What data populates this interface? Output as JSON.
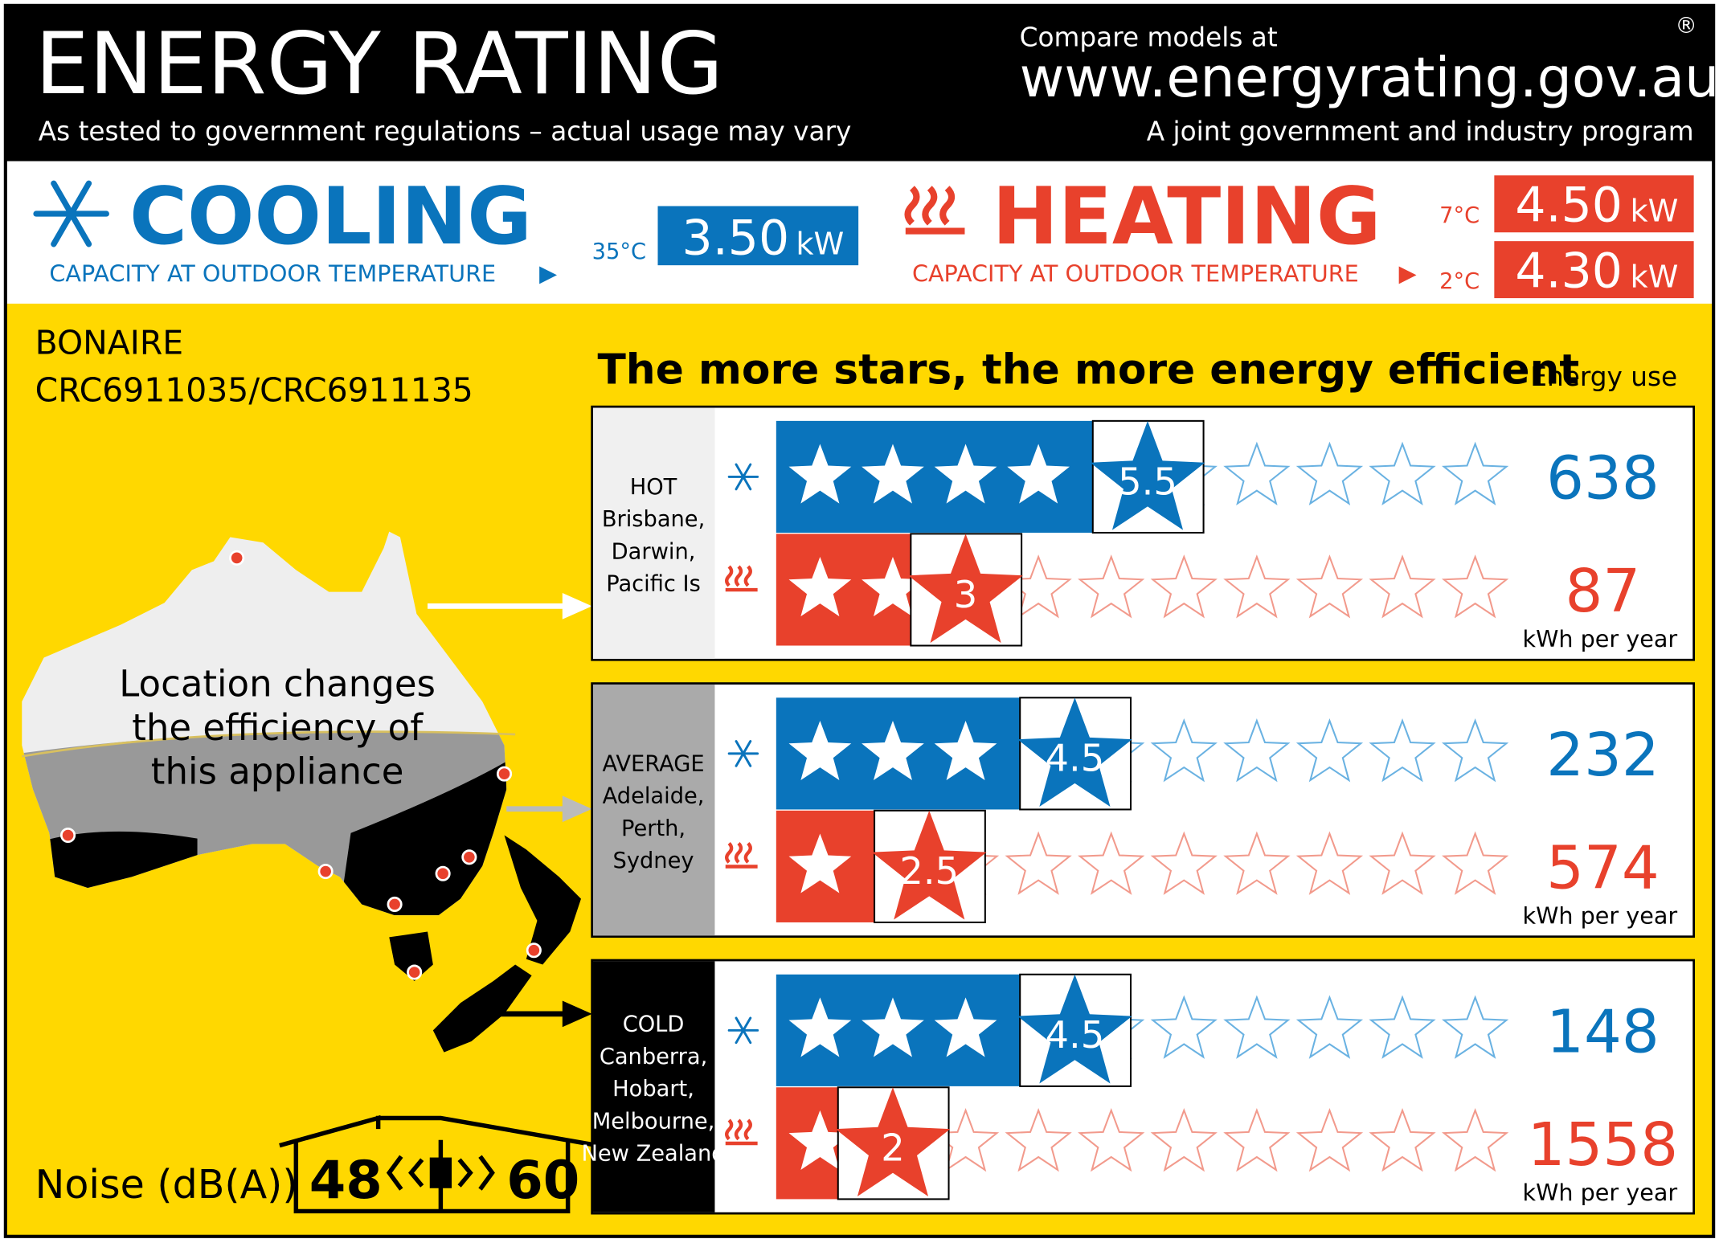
{
  "header": {
    "title": "ENERGY RATING",
    "subtitle": "As tested to government regulations – actual usage may vary",
    "compare": "Compare models at",
    "url": "www.energyrating.gov.au",
    "registered": "®",
    "program": "A joint government and industry program"
  },
  "cooling": {
    "label": "COOLING",
    "caption": "CAPACITY AT OUTDOOR TEMPERATURE",
    "ratings": [
      {
        "temperature": "35°C",
        "capacity": "3.50",
        "unit": "kW"
      }
    ]
  },
  "heating": {
    "label": "HEATING",
    "caption": "CAPACITY AT OUTDOOR TEMPERATURE",
    "ratings": [
      {
        "temperature": "7°C",
        "capacity": "4.50",
        "unit": "kW"
      },
      {
        "temperature": "2°C",
        "capacity": "4.30",
        "unit": "kW"
      }
    ]
  },
  "model": {
    "brand": "BONAIRE",
    "number": "CRC6911035/CRC6911135"
  },
  "map_caption": [
    "Location changes",
    "the efficiency of",
    "this appliance"
  ],
  "stars_heading": "The more stars, the more energy efficient",
  "energy_use_heading": "Energy use",
  "zones": [
    {
      "name": "HOT",
      "places": [
        "Brisbane,",
        "Darwin,",
        "Pacific Is"
      ],
      "cooling": {
        "stars": 5.5,
        "energy": 638
      },
      "heating": {
        "stars": 3,
        "energy": 87
      },
      "unit": "kWh per year"
    },
    {
      "name": "AVERAGE",
      "places": [
        "Adelaide,",
        "Perth,",
        "Sydney"
      ],
      "cooling": {
        "stars": 4.5,
        "energy": 232
      },
      "heating": {
        "stars": 2.5,
        "energy": 574
      },
      "unit": "kWh per year"
    },
    {
      "name": "COLD",
      "places": [
        "Canberra,",
        "Hobart,",
        "Melbourne,",
        "New Zealand"
      ],
      "cooling": {
        "stars": 4.5,
        "energy": 148
      },
      "heating": {
        "stars": 2,
        "energy": 1558
      },
      "unit": "kWh per year"
    }
  ],
  "noise": {
    "label": "Noise (dB(A))",
    "indoor": 48,
    "outdoor": 60
  }
}
